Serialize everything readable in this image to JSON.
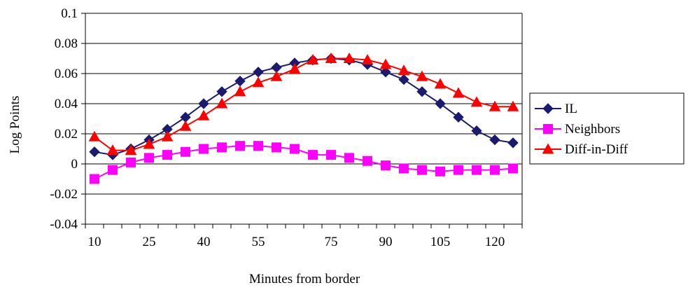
{
  "chart_data": {
    "type": "line",
    "title": "",
    "xlabel": "Minutes from border",
    "ylabel": "Log Points",
    "x": [
      10,
      15,
      20,
      25,
      30,
      35,
      40,
      45,
      50,
      55,
      60,
      65,
      70,
      75,
      80,
      85,
      90,
      95,
      100,
      105,
      110,
      115,
      120,
      125
    ],
    "x_tick_labels": [
      "10",
      "25",
      "40",
      "55",
      "75",
      "90",
      "105",
      "120"
    ],
    "ylim": [
      -0.04,
      0.1
    ],
    "y_tick_labels": [
      "-0.04",
      "-0.02",
      "0",
      "0.02",
      "0.04",
      "0.06",
      "0.08",
      "0.1"
    ],
    "grid": "horizontal",
    "legend_position": "right",
    "series": [
      {
        "name": "IL",
        "color": "#1a1a6e",
        "marker": "diamond",
        "values": [
          0.008,
          0.006,
          0.01,
          0.016,
          0.023,
          0.031,
          0.04,
          0.048,
          0.055,
          0.061,
          0.064,
          0.067,
          0.069,
          0.07,
          0.069,
          0.066,
          0.061,
          0.056,
          0.048,
          0.04,
          0.031,
          0.022,
          0.016,
          0.014
        ]
      },
      {
        "name": "Neighbors",
        "color": "#ff00ff",
        "marker": "square",
        "values": [
          -0.01,
          -0.004,
          0.001,
          0.004,
          0.006,
          0.008,
          0.01,
          0.011,
          0.012,
          0.012,
          0.011,
          0.01,
          0.006,
          0.006,
          0.004,
          0.002,
          -0.001,
          -0.003,
          -0.004,
          -0.005,
          -0.004,
          -0.004,
          -0.004,
          -0.003
        ]
      },
      {
        "name": "Diff-in-Diff",
        "color": "#ff0000",
        "marker": "triangle",
        "values": [
          0.018,
          0.009,
          0.009,
          0.013,
          0.018,
          0.025,
          0.032,
          0.04,
          0.048,
          0.054,
          0.058,
          0.063,
          0.069,
          0.07,
          0.07,
          0.069,
          0.066,
          0.062,
          0.058,
          0.053,
          0.047,
          0.041,
          0.038,
          0.038
        ]
      }
    ]
  }
}
